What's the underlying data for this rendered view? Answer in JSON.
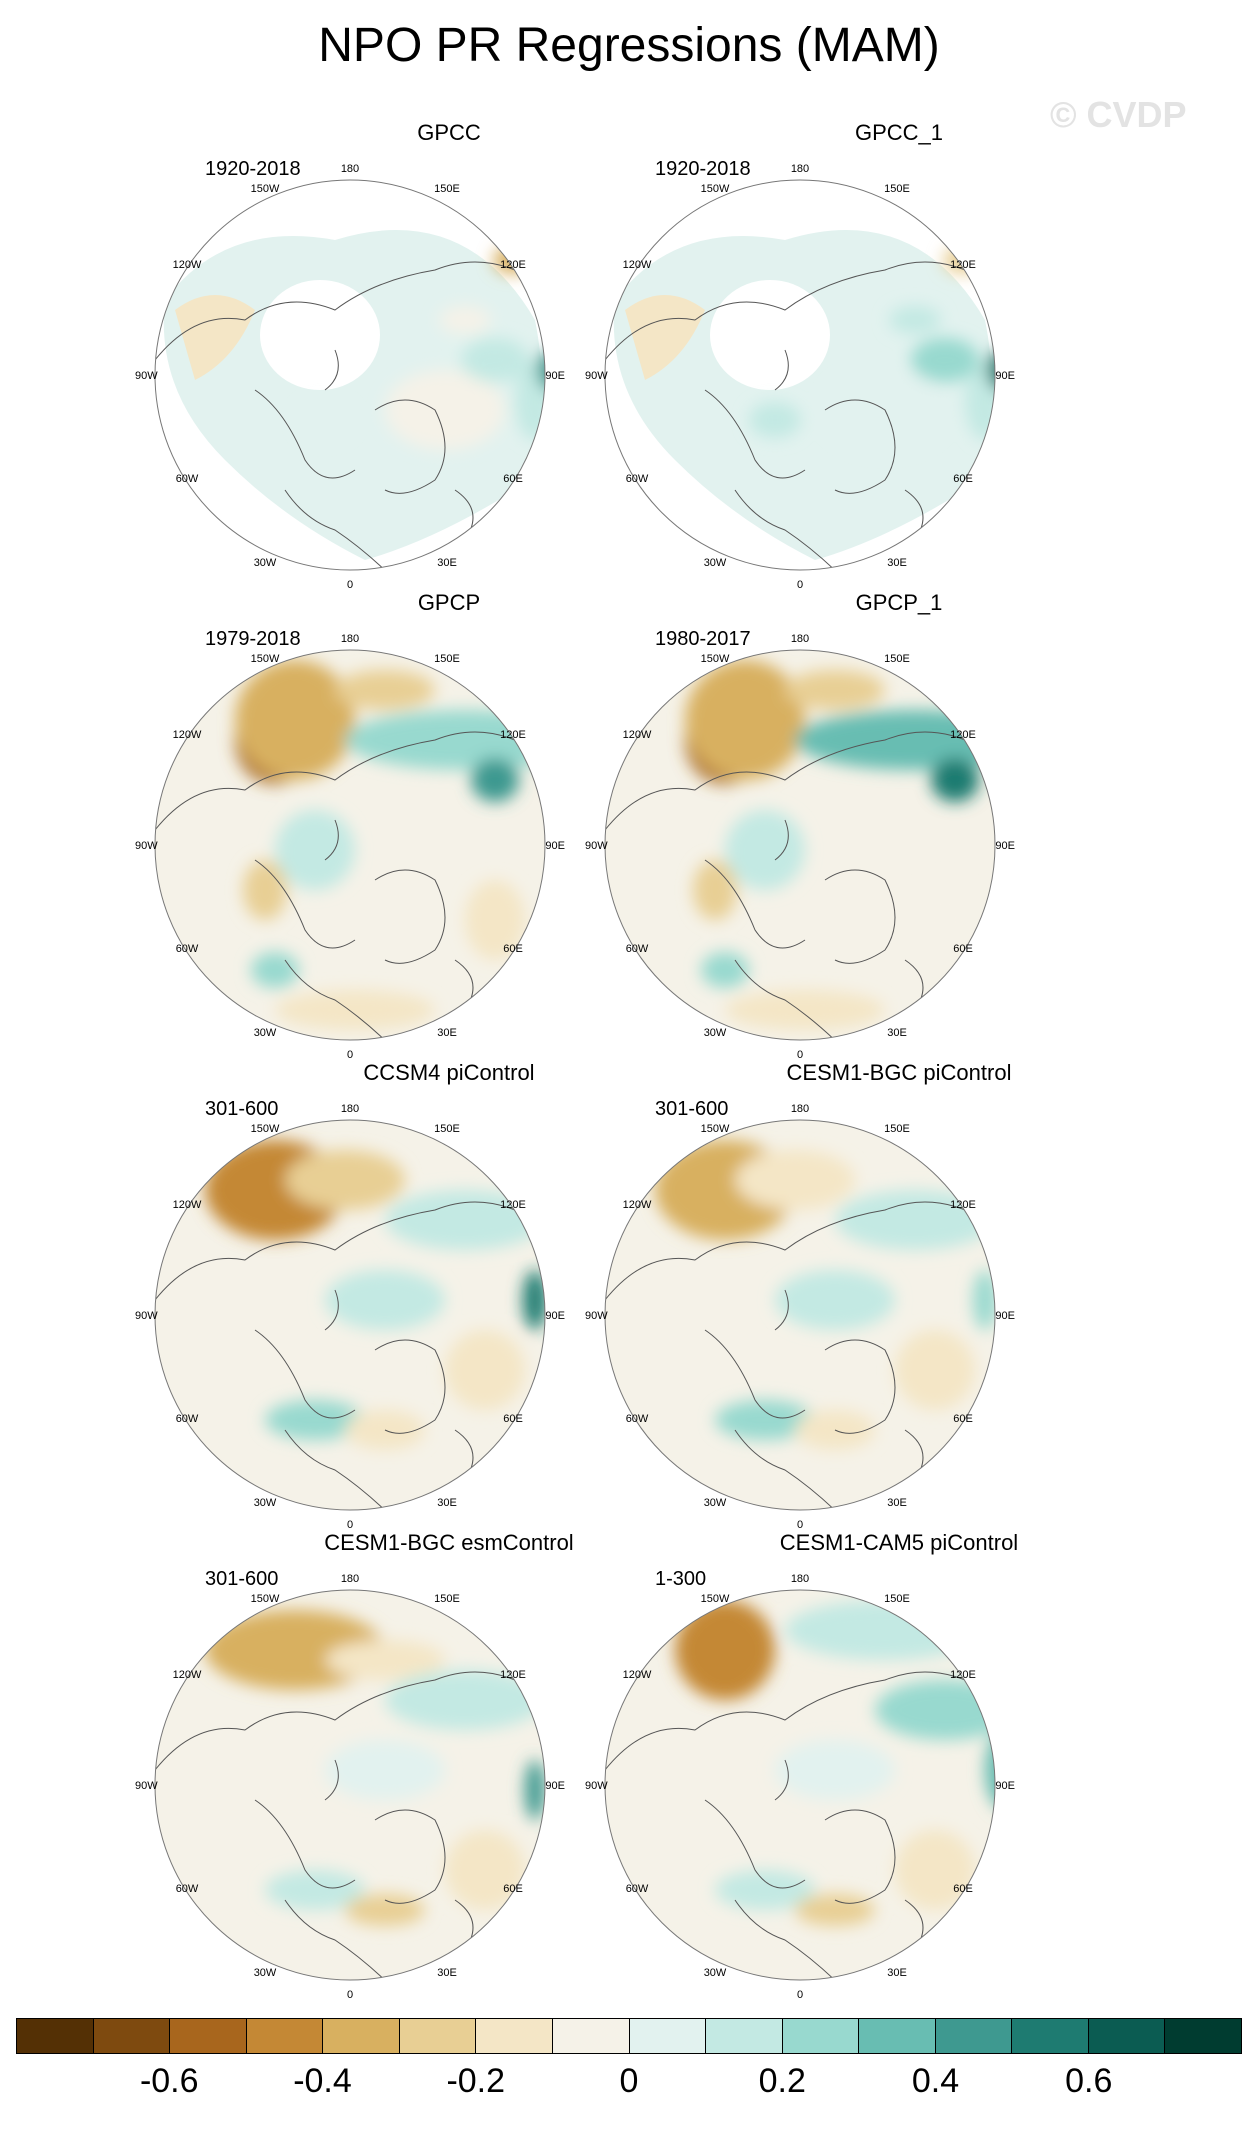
{
  "title": "NPO PR Regressions (MAM)",
  "watermark": "© CVDP",
  "ticks": {
    "top": "180",
    "bottom": "0",
    "left": "90W",
    "right": "90E",
    "ul_inner": "150W",
    "ur_inner": "150E",
    "ul_outer": "120W",
    "ur_outer": "120E",
    "ll_outer": "60W",
    "lr_outer": "60E",
    "ll_inner": "30W",
    "lr_inner": "30E"
  },
  "panels": [
    {
      "name": "GPCC",
      "years": "1920-2018"
    },
    {
      "name": "GPCC_1",
      "years": "1920-2018"
    },
    {
      "name": "GPCP",
      "years": "1979-2018"
    },
    {
      "name": "GPCP_1",
      "years": "1980-2017"
    },
    {
      "name": "CCSM4 piControl",
      "years": "301-600"
    },
    {
      "name": "CESM1-BGC piControl",
      "years": "301-600"
    },
    {
      "name": "CESM1-BGC esmControl",
      "years": "301-600"
    },
    {
      "name": "CESM1-CAM5 piControl",
      "years": "1-300"
    }
  ],
  "colorbar": {
    "colors": [
      "#543005",
      "#7e4a0f",
      "#a8661d",
      "#c48835",
      "#d8b060",
      "#e8cf94",
      "#f4e6c6",
      "#f5f2e8",
      "#e2f2ef",
      "#c3e9e3",
      "#98d9cf",
      "#68bdb2",
      "#3e9990",
      "#1e7b71",
      "#0b5c52",
      "#003c30"
    ],
    "labels": [
      "-0.6",
      "-0.4",
      "-0.2",
      "0",
      "0.2",
      "0.4",
      "0.6"
    ]
  }
}
